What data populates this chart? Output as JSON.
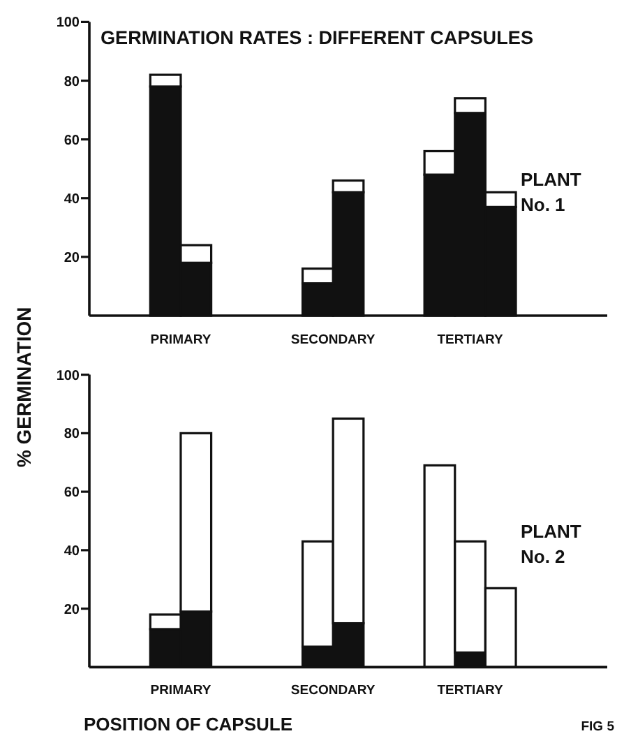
{
  "chart_data": [
    {
      "type": "bar",
      "title": "GERMINATION RATES : DIFFERENT CAPSULES",
      "stacked": true,
      "categories": [
        null,
        null,
        null,
        null,
        null,
        null,
        null,
        null,
        null,
        null,
        null,
        null,
        null,
        null,
        null,
        null,
        null
      ],
      "series": [
        {
          "color": "#111111",
          "values": [
            null,
            null,
            78,
            18,
            null,
            null,
            null,
            11,
            42,
            null,
            null,
            48,
            69,
            37,
            null,
            null,
            null
          ]
        },
        {
          "color": "#ffffff",
          "values": [
            null,
            null,
            4,
            6,
            null,
            null,
            null,
            5,
            4,
            null,
            null,
            8,
            5,
            5,
            null,
            null,
            null
          ]
        }
      ],
      "ylim": [
        0,
        100
      ],
      "yticks": [
        20,
        40,
        60,
        80,
        100
      ],
      "annotations": [
        "PRIMARY",
        "SECONDARY",
        "TERTIARY",
        "PLANT No. 1"
      ]
    },
    {
      "type": "bar",
      "xlabel": "POSITION OF CAPSULE",
      "ylabel": "% GERMINATION",
      "stacked": true,
      "categories": [
        null,
        null,
        null,
        null,
        null,
        null,
        null,
        null,
        null,
        null,
        null,
        null,
        null,
        null,
        null,
        null,
        null
      ],
      "series": [
        {
          "color": "#111111",
          "values": [
            null,
            null,
            13,
            19,
            null,
            null,
            null,
            7,
            15,
            null,
            null,
            0,
            5,
            0,
            null,
            null,
            null
          ]
        },
        {
          "color": "#ffffff",
          "values": [
            null,
            null,
            5,
            61,
            null,
            null,
            null,
            36,
            70,
            null,
            null,
            69,
            38,
            27,
            null,
            null,
            null
          ]
        }
      ],
      "ylim": [
        0,
        100
      ],
      "yticks": [
        20,
        40,
        60,
        80,
        100
      ],
      "annotations": [
        "PRIMARY",
        "SECONDARY",
        "TERTIARY",
        "PLANT No. 2",
        "FIG 5"
      ]
    }
  ]
}
